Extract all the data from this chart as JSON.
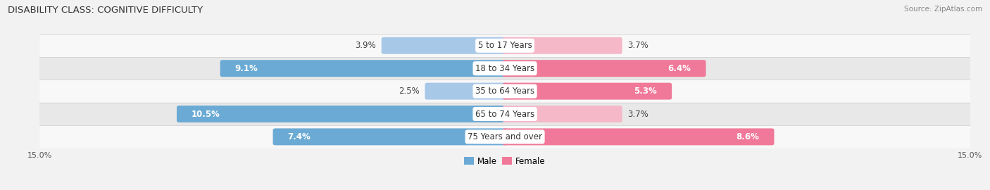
{
  "title": "DISABILITY CLASS: COGNITIVE DIFFICULTY",
  "source": "Source: ZipAtlas.com",
  "categories": [
    "5 to 17 Years",
    "18 to 34 Years",
    "35 to 64 Years",
    "65 to 74 Years",
    "75 Years and over"
  ],
  "male_values": [
    3.9,
    9.1,
    2.5,
    10.5,
    7.4
  ],
  "female_values": [
    3.7,
    6.4,
    5.3,
    3.7,
    8.6
  ],
  "xlim": 15.0,
  "male_color_light": "#a8c8e8",
  "male_color_dark": "#6aaad4",
  "female_color_light": "#f5b8c8",
  "female_color_dark": "#f07898",
  "bg_color": "#f2f2f2",
  "row_bg_light": "#f8f8f8",
  "row_bg_dark": "#e8e8e8",
  "label_fontsize": 8.5,
  "title_fontsize": 9.5,
  "axis_label_fontsize": 8,
  "legend_fontsize": 8.5
}
